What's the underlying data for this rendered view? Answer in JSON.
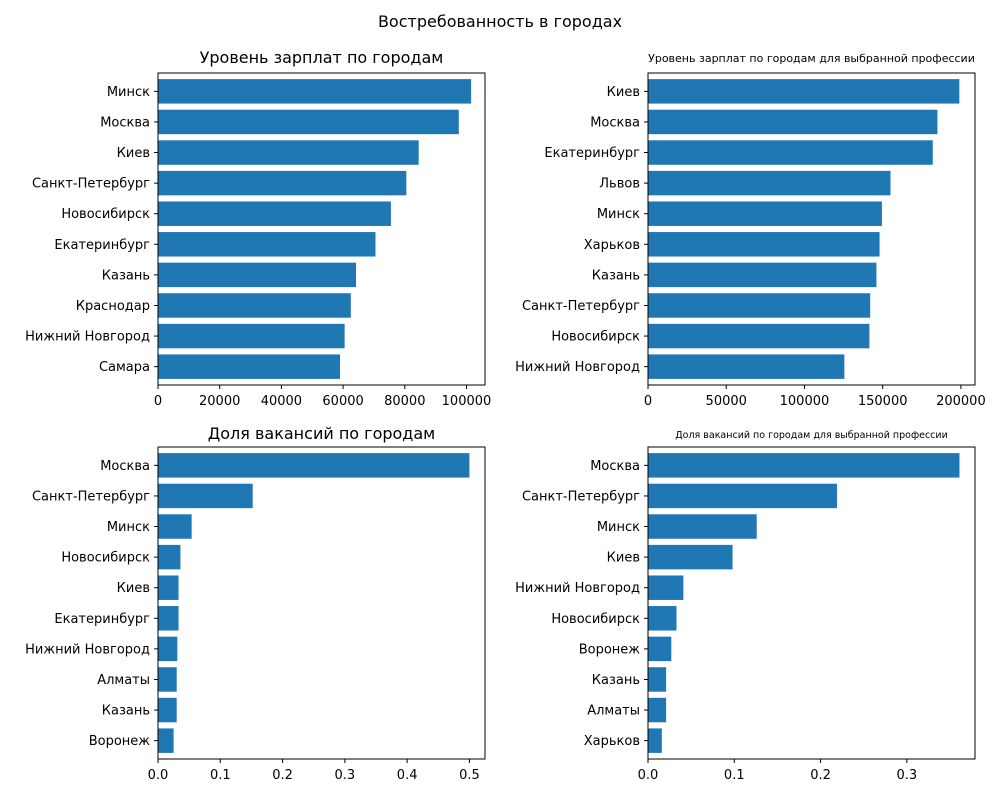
{
  "figure": {
    "suptitle": "Востребованность в городах"
  },
  "colors": {
    "bar": "#1f77b4",
    "axis": "#000000",
    "background": "#ffffff"
  },
  "chart_data": [
    {
      "type": "bar",
      "orientation": "horizontal",
      "title": "Уровень зарплат по городам",
      "categories": [
        "Минск",
        "Москва",
        "Киев",
        "Санкт-Петербург",
        "Новосибирск",
        "Екатеринбург",
        "Казань",
        "Краснодар",
        "Нижний Новгород",
        "Самара"
      ],
      "values": [
        101500,
        97500,
        84500,
        80500,
        75500,
        70500,
        64200,
        62500,
        60500,
        59000
      ],
      "xlim": [
        0,
        106000
      ],
      "xticks": [
        0,
        20000,
        40000,
        60000,
        80000,
        100000
      ],
      "xtick_labels": [
        "0",
        "20000",
        "40000",
        "60000",
        "80000",
        "100000"
      ],
      "grid": false
    },
    {
      "type": "bar",
      "orientation": "horizontal",
      "title": "Уровень зарплат по городам для выбранной профессии",
      "categories": [
        "Киев",
        "Москва",
        "Екатеринбург",
        "Львов",
        "Минск",
        "Харьков",
        "Казань",
        "Санкт-Петербург",
        "Новосибирск",
        "Нижний Новгород"
      ],
      "values": [
        199000,
        185000,
        182000,
        155000,
        149500,
        148000,
        146000,
        142000,
        141500,
        125500
      ],
      "xlim": [
        0,
        209000
      ],
      "xticks": [
        0,
        50000,
        100000,
        150000,
        200000
      ],
      "xtick_labels": [
        "0",
        "50000",
        "100000",
        "150000",
        "200000"
      ],
      "grid": false
    },
    {
      "type": "bar",
      "orientation": "horizontal",
      "title": "Доля вакансий по городам",
      "categories": [
        "Москва",
        "Санкт-Петербург",
        "Минск",
        "Новосибирск",
        "Киев",
        "Екатеринбург",
        "Нижний Новгород",
        "Алматы",
        "Казань",
        "Воронеж"
      ],
      "values": [
        0.5,
        0.152,
        0.054,
        0.036,
        0.033,
        0.033,
        0.031,
        0.03,
        0.03,
        0.025
      ],
      "xlim": [
        0,
        0.525
      ],
      "xticks": [
        0.0,
        0.1,
        0.2,
        0.3,
        0.4,
        0.5
      ],
      "xtick_labels": [
        "0.0",
        "0.1",
        "0.2",
        "0.3",
        "0.4",
        "0.5"
      ],
      "grid": false
    },
    {
      "type": "bar",
      "orientation": "horizontal",
      "title": "Доля вакансий по городам для выбранной профессии",
      "categories": [
        "Москва",
        "Санкт-Петербург",
        "Минск",
        "Киев",
        "Нижний Новгород",
        "Новосибирск",
        "Воронеж",
        "Казань",
        "Алматы",
        "Харьков"
      ],
      "values": [
        0.361,
        0.219,
        0.126,
        0.098,
        0.041,
        0.033,
        0.027,
        0.021,
        0.021,
        0.016
      ],
      "xlim": [
        0,
        0.379
      ],
      "xticks": [
        0.0,
        0.1,
        0.2,
        0.3
      ],
      "xtick_labels": [
        "0.0",
        "0.1",
        "0.2",
        "0.3"
      ],
      "grid": false
    }
  ]
}
